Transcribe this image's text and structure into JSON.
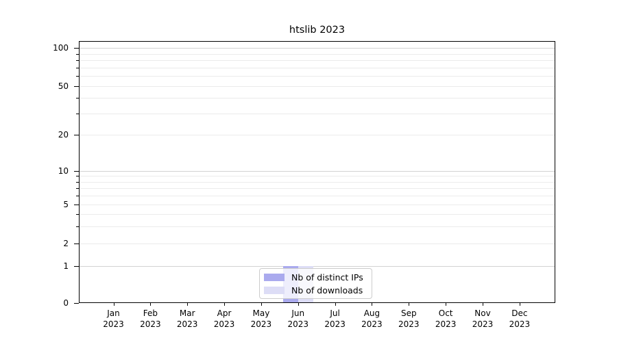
{
  "chart_data": {
    "type": "bar",
    "title": "htslib 2023",
    "year": "2023",
    "months": [
      "Jan",
      "Feb",
      "Mar",
      "Apr",
      "May",
      "Jun",
      "Jul",
      "Aug",
      "Sep",
      "Oct",
      "Nov",
      "Dec"
    ],
    "categories": [
      "Jan 2023",
      "Feb 2023",
      "Mar 2023",
      "Apr 2023",
      "May 2023",
      "Jun 2023",
      "Jul 2023",
      "Aug 2023",
      "Sep 2023",
      "Oct 2023",
      "Nov 2023",
      "Dec 2023"
    ],
    "series": [
      {
        "name": "Nb of distinct IPs",
        "color": "#aaaaee",
        "values": [
          0,
          0,
          0,
          0,
          0,
          1,
          0,
          0,
          0,
          0,
          0,
          0
        ]
      },
      {
        "name": "Nb of downloads",
        "color": "#ddddf6",
        "values": [
          0,
          0,
          0,
          0,
          0,
          1,
          0,
          0,
          0,
          0,
          0,
          0
        ]
      }
    ],
    "yscale": "symlog",
    "yticks": [
      0,
      1,
      2,
      5,
      10,
      20,
      50,
      100
    ],
    "ylim": [
      0,
      113
    ],
    "grid": true,
    "legend_position": "lower center"
  },
  "colors": {
    "grid_major": "#d2d2d2",
    "grid_minor": "#ebebeb",
    "axis": "#000000",
    "legend_border": "#cccccc",
    "legend_background": "rgba(255,255,255,0.8)"
  }
}
